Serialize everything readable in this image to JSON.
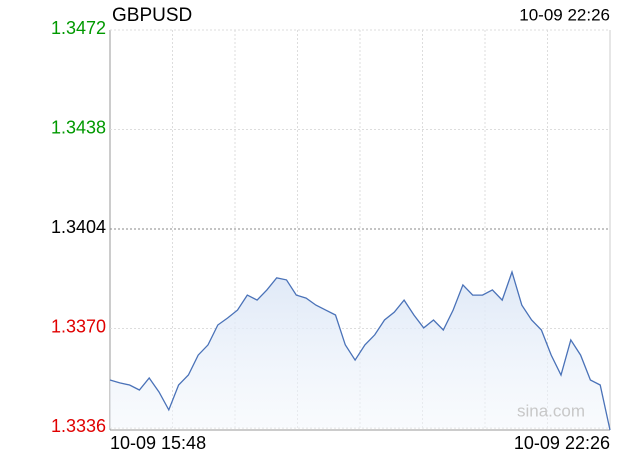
{
  "chart_data": {
    "type": "line",
    "title": "GBPUSD",
    "timestamp": "10-09 22:26",
    "watermark": "sina.com",
    "x": [
      "10-09 15:48",
      null,
      null,
      null,
      null,
      null,
      null,
      null,
      null,
      null,
      null,
      null,
      null,
      null,
      null,
      null,
      null,
      null,
      null,
      null,
      null,
      null,
      null,
      null,
      null,
      null,
      null,
      null,
      null,
      null,
      null,
      null,
      null,
      null,
      null,
      null,
      null,
      null,
      null,
      null,
      null,
      null,
      null,
      null,
      null,
      null,
      null,
      null,
      null,
      null,
      null,
      "10-09 22:26"
    ],
    "series": [
      {
        "name": "GBPUSD",
        "color": "#4a72b8",
        "values": [
          1.33524,
          1.33514,
          1.33507,
          1.3349,
          1.33531,
          1.33483,
          1.33422,
          1.33507,
          1.33541,
          1.33609,
          1.33644,
          1.33712,
          1.33736,
          1.33763,
          1.33814,
          1.33797,
          1.33832,
          1.33873,
          1.33866,
          1.33814,
          1.33804,
          1.3378,
          1.33763,
          1.33746,
          1.33644,
          1.33592,
          1.33644,
          1.33678,
          1.33729,
          1.33756,
          1.33797,
          1.33746,
          1.33702,
          1.33729,
          1.33695,
          1.33763,
          1.33849,
          1.33814,
          1.33814,
          1.33832,
          1.33797,
          1.33893,
          1.3378,
          1.33729,
          1.33695,
          1.33609,
          1.33541,
          1.33661,
          1.33609,
          1.33524,
          1.33507,
          1.33353
        ]
      }
    ],
    "ylim": [
      1.3336,
      1.3472
    ],
    "yticks": [
      1.3472,
      1.3438,
      1.3404,
      {
        "value": 1.337,
        "label": "1.3370"
      },
      1.3336
    ],
    "ytick_colors": [
      "#009900",
      "#009900",
      "#000000",
      "#e00000",
      "#e00000"
    ],
    "x_grid_divisions": 8,
    "grid": true
  }
}
